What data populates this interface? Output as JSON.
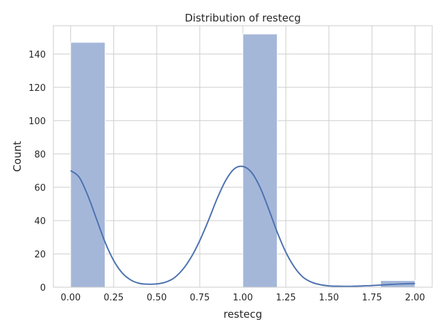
{
  "chart_data": {
    "type": "bar",
    "title": "Distribution of restecg",
    "xlabel": "restecg",
    "ylabel": "Count",
    "bin_edges": [
      0.0,
      0.2,
      0.4,
      0.6,
      0.8,
      1.0,
      1.2,
      1.4,
      1.6,
      1.8,
      2.0
    ],
    "values": [
      147,
      0,
      0,
      0,
      0,
      152,
      0,
      0,
      0,
      4
    ],
    "xlim": [
      -0.1,
      2.1
    ],
    "ylim": [
      0,
      157
    ],
    "xticks": [
      "0.00",
      "0.25",
      "0.50",
      "0.75",
      "1.00",
      "1.25",
      "1.50",
      "1.75",
      "2.00"
    ],
    "xtick_values": [
      0,
      0.25,
      0.5,
      0.75,
      1.0,
      1.25,
      1.5,
      1.75,
      2.0
    ],
    "yticks": [
      "0",
      "20",
      "40",
      "60",
      "80",
      "100",
      "120",
      "140"
    ],
    "ytick_values": [
      0,
      20,
      40,
      60,
      80,
      100,
      120,
      140
    ],
    "grid": true,
    "kde": {
      "x": [
        0,
        0.05,
        0.1,
        0.15,
        0.2,
        0.25,
        0.3,
        0.35,
        0.4,
        0.45,
        0.5,
        0.55,
        0.6,
        0.65,
        0.7,
        0.75,
        0.8,
        0.85,
        0.9,
        0.95,
        1.0,
        1.05,
        1.1,
        1.15,
        1.2,
        1.25,
        1.3,
        1.35,
        1.4,
        1.45,
        1.5,
        1.55,
        1.6,
        1.65,
        1.7,
        1.75,
        1.8,
        1.85,
        1.9,
        1.95,
        2.0
      ],
      "y": [
        70,
        66,
        55,
        41,
        27,
        16,
        8.5,
        4.3,
        2.3,
        1.8,
        2,
        3,
        5.5,
        10.5,
        18,
        28,
        40,
        53,
        64,
        71,
        72.5,
        69,
        60,
        47,
        33,
        21,
        12,
        6,
        3,
        1.5,
        0.8,
        0.6,
        0.5,
        0.6,
        0.8,
        1.0,
        1.3,
        1.6,
        1.9,
        2.1,
        2.2
      ]
    },
    "colors": {
      "bar_fill": "#a5b7d9",
      "bar_edge": "#ffffff",
      "kde_line": "#4c72b0",
      "grid": "#cccccc",
      "frame": "#cccccc"
    }
  }
}
